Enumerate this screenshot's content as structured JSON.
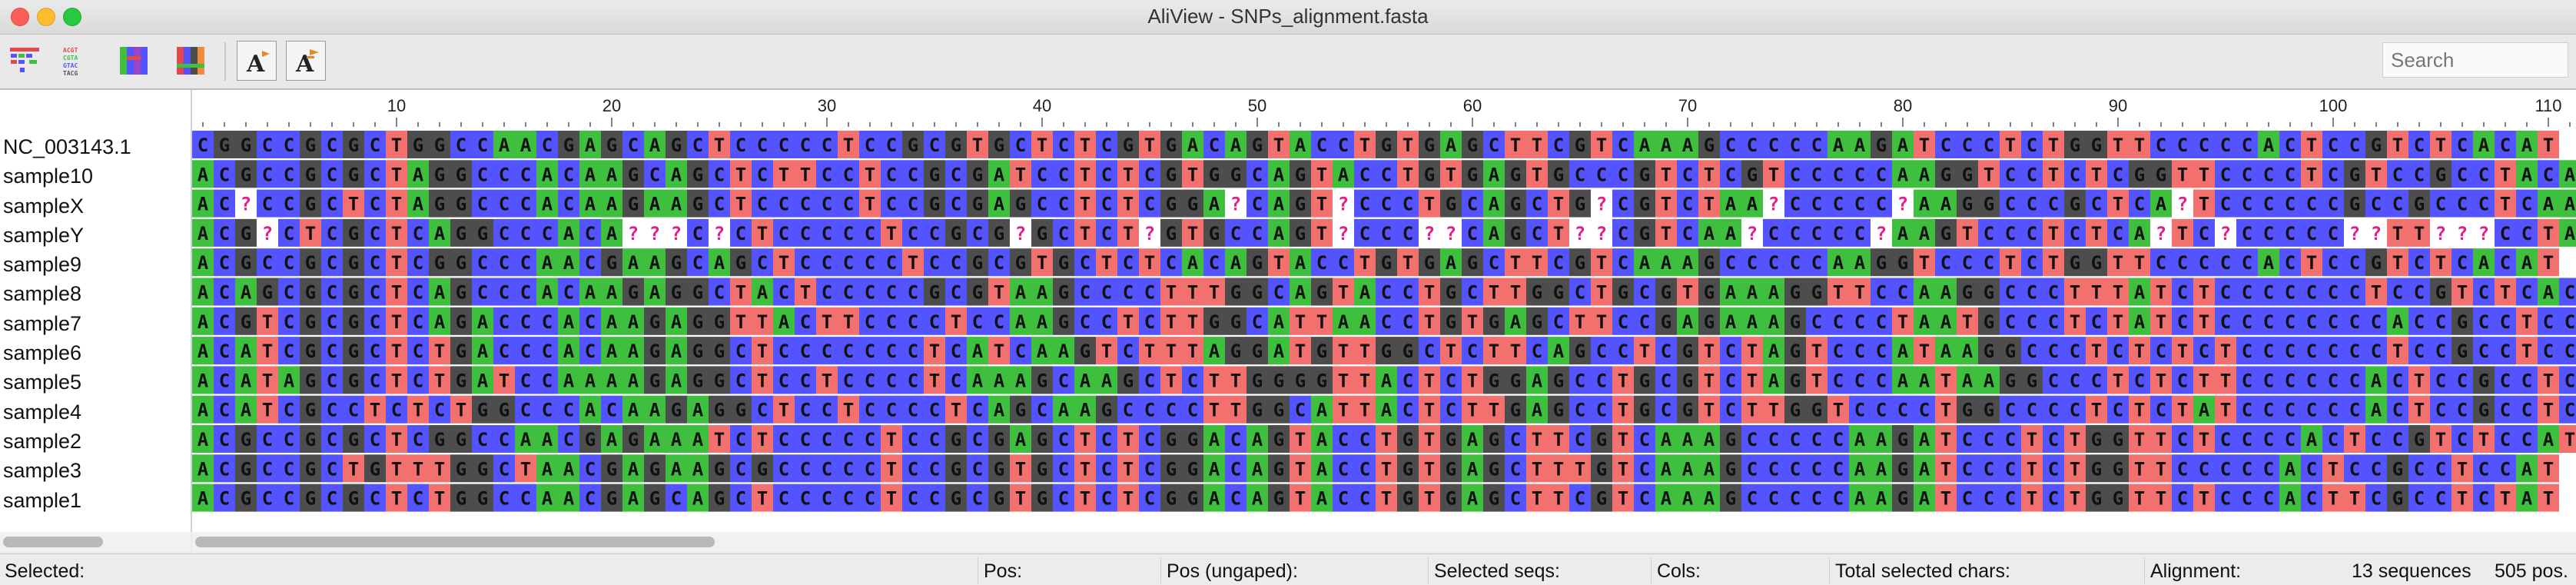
{
  "window": {
    "title": "AliView - SNPs_alignment.fasta",
    "buttons": [
      "close",
      "minimize",
      "maximize"
    ]
  },
  "toolbar": {
    "icons": [
      "translate-toolbar-icon",
      "nucleotide-view-icon",
      "color-scheme-blue-icon",
      "color-scheme-red-icon",
      "font-decrease-icon",
      "font-increase-icon"
    ],
    "search_placeholder": "Search"
  },
  "sequence_names": [
    "NC_003143.1",
    "sample10",
    "sampleX",
    "sampleY",
    "sample9",
    "sample8",
    "sample7",
    "sample6",
    "sample5",
    "sample4",
    "sample2",
    "sample3",
    "sample1"
  ],
  "ruler_labels": [
    "10",
    "20",
    "30",
    "40",
    "50",
    "60",
    "70",
    "80",
    "90",
    "100",
    "110"
  ],
  "alignment_rows": [
    "CGGCCGCGCTGGCCAACGAGCAGCTCCCCCTCCGCGTGCTCTCGTGACAGTACCTGTGAGCTTCGTCAAAGCCCCCAAGATCCCTCTGGTTCCCCCACTCCGTCTCACAT",
    "ACGCCGCGCTAGGCCCACAAGCAGCTCTTCCTCCGCGATCCTCTCGTGGCAGTACCTGTGAGTGCCCGTCTCGTCCCCCAAGGTCCTCTCGGTTCCCCTCGTCCGCCTACAT",
    "AC?CCGCTCTAGGCCCACAAGAAGCTCCCCCTCCGCGAGCCTCTCGGA?CAGT?CCCTGCAGCTG?CGTCTAA?CCCCC?AAGGCCCGCTCA?TCCCCCCGCCGCCCTCAAT",
    "ACG?CTCGCTCAGGCCCACA???C?CTCCCCCTCCGCG?GCTCT?GTGCCAGT?CCC??CAGCT??CGTCAA?CCCCC?AAGTCCCTCTCA?TC?CCCCC??TT???CCTA??",
    "ACGCCGCGCTCGGCCCAACGAAGCAGCTCCCCCTCCGCGTGCTCTCACAGTACCTGTGAGCTTCGTCAAAGCCCCCAAGGTCCCTCTGGTTCCCCCACTCCGTCTCACAT",
    "ACAGCGCGCTCAGCCCACAAGAGGCTACTCCCCCGCGTAAGCCCCTTTGGCAGTACCTGCTTGGCTGCGTGAAAGGTTCCAAGGCCCTTTATCTCCCCCCCTCCGTCTCACA",
    "ACGTCGCGCTCAGACCCACAAGAGGTTACTTCCCCTCCAAGCCTCTTGGCATTAACCTGTGAGCTTCCGAGAAAGCCCCTAATGCCCTCTATCTCCCCCCCCACCGCCTCCA",
    "ACATCGCGCTCTGACCCACAAGAGGCTCCCCCCCTCATCAAGTCTTTAGGATGTTGGCTCTTCAGCCTCGTCTAGTCCCATAAGGCCCTCTCTCTCCCCCCCTCCGCCTCCA",
    "ACATAGCGCTCTGATCCAAAAGAGGCTCCTCCCCTCAAAGCAAGCTCTTGGGGTTACTCTGGAGCCTGCGTCTAGTCCCAATAAGGCCCTCTCTTCCCCCCACTCCGCCTCCA",
    "ACATCGCCTCTCTGGCCCACAAGAGGCTCCTCCCCTCAGCAAGCCCCTTGGCATTACTCTTGAGCCTGCGTCTTGGTCCCCTGGCCCCTCTCTATCCCCCCACTCCGCCTCCA",
    "ACGCCGCGCTCGGCCAACGAGAAATCTCCCCCTCCGCGAGCTCTCGGACAGTACCTGTGAGCTTCGTCAAAGCCCCCAAGATCCCTCTGGTTCTCCCCACTCCGTCTCCAT",
    "ACGCCGCTGTTTGGCTAACGAGAAGCGCCCCCTCCGCGTGCTCTCGGACAGTACCTGTGAGCTTTGTCAAAGCCCCCAAGATCCCTCTGGTTCCCCCACTCCGCCTCCAT",
    "ACGCCGCGCTCTGGCCAACGAGCAGCTCCCCCTCCGCGTGCTCTCGGACAGTACCTGTGAGCTTCGTCAAAGCCCCCAAGATCCCTCTGGTTCTCCCACTTCGCCTCTAT"
  ],
  "alignment_colors": {
    "A": "#3ec03e",
    "C": "#5353ff",
    "G": "#4d4d4d",
    "T": "#f2706e",
    "?": "#ffffff"
  },
  "statusbar": {
    "selected_label": "Selected:",
    "pos_label": "Pos:",
    "pos_ungaped_label": "Pos (ungaped):",
    "selected_seqs_label": "Selected seqs:",
    "cols_label": "Cols:",
    "total_selected_label": "Total selected chars:",
    "alignment_label": "Alignment:",
    "alignment_seqs": "13 sequences",
    "alignment_len": "505 pos."
  }
}
